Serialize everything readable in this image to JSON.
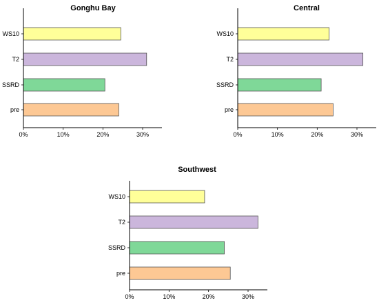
{
  "colors": {
    "WS10": "#ffff99",
    "T2": "#cbb6dc",
    "SSRD": "#7fd898",
    "pre": "#fdc894",
    "axis": "#000000",
    "bar_stroke": "#555555"
  },
  "chart_data": [
    {
      "type": "bar",
      "orientation": "horizontal",
      "title": "Gonghu Bay",
      "categories": [
        "WS10",
        "T2",
        "SSRD",
        "pre"
      ],
      "values": [
        24.5,
        31.0,
        20.5,
        24.0
      ],
      "xlim": [
        0,
        35
      ],
      "xticks": [
        0,
        10,
        20,
        30
      ],
      "xtick_labels": [
        "0%",
        "10%",
        "20%",
        "30%"
      ],
      "xlabel": "",
      "ylabel": "",
      "grid": false
    },
    {
      "type": "bar",
      "orientation": "horizontal",
      "title": "Central",
      "categories": [
        "WS10",
        "T2",
        "SSRD",
        "pre"
      ],
      "values": [
        23.0,
        31.5,
        21.0,
        24.0
      ],
      "xlim": [
        0,
        35
      ],
      "xticks": [
        0,
        10,
        20,
        30
      ],
      "xtick_labels": [
        "0%",
        "10%",
        "20%",
        "30%"
      ],
      "xlabel": "",
      "ylabel": "",
      "grid": false
    },
    {
      "type": "bar",
      "orientation": "horizontal",
      "title": "Southwest",
      "categories": [
        "WS10",
        "T2",
        "SSRD",
        "pre"
      ],
      "values": [
        19.0,
        32.5,
        24.0,
        25.5
      ],
      "xlim": [
        0,
        35
      ],
      "xticks": [
        0,
        10,
        20,
        30
      ],
      "xtick_labels": [
        "0%",
        "10%",
        "20%",
        "30%"
      ],
      "xlabel": "",
      "ylabel": "",
      "grid": false
    }
  ]
}
